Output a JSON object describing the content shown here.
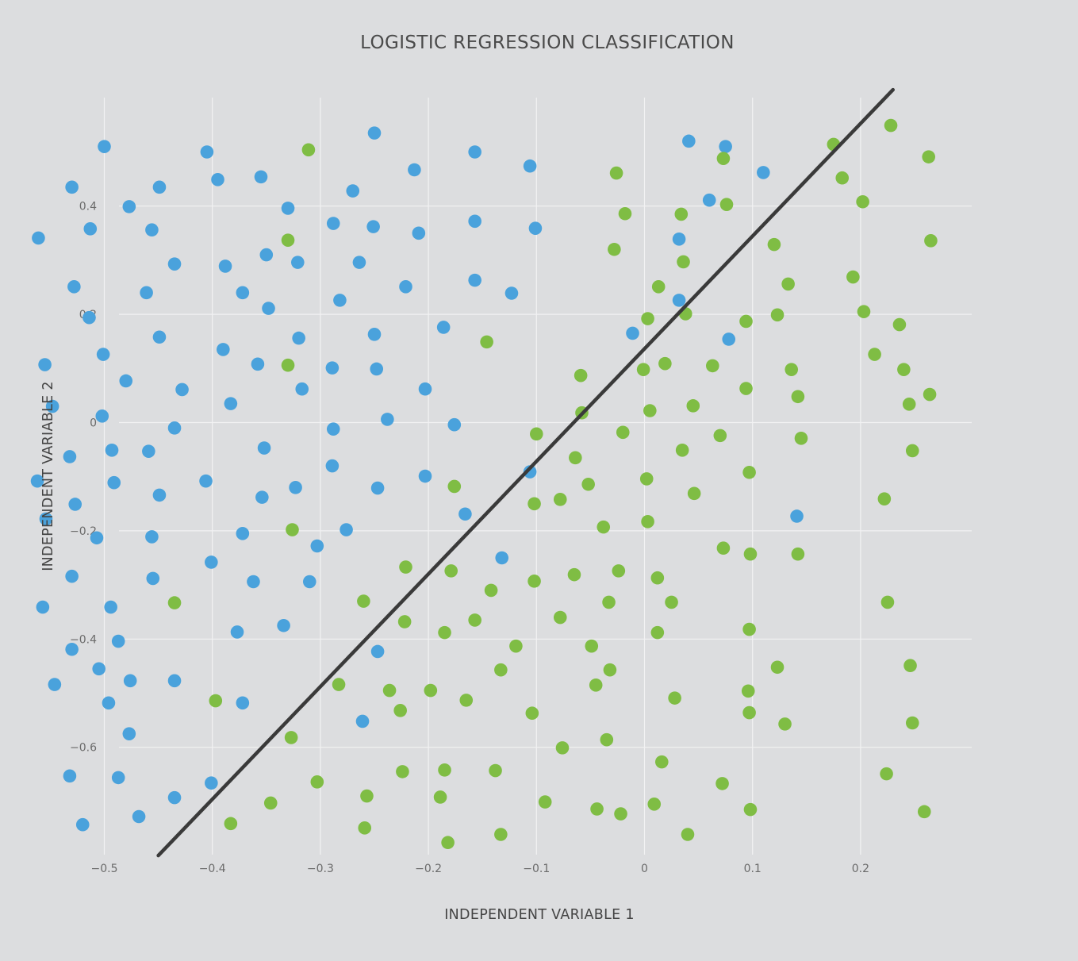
{
  "chart_data": {
    "type": "scatter",
    "title": "LOGISTIC REGRESSION CLASSIFICATION",
    "xlabel": "INDEPENDENT VARIABLE 1",
    "ylabel": "INDEPENDENT VARIABLE 2",
    "xlim": [
      -0.6,
      0.3
    ],
    "ylim": [
      -0.8,
      0.6
    ],
    "x_ticks": [
      -0.5,
      -0.4,
      -0.3,
      -0.2,
      -0.1,
      0,
      0.1,
      0.2
    ],
    "x_tick_labels": [
      "−0.5",
      "−0.4",
      "−0.3",
      "−0.2",
      "−0.1",
      "0",
      "0.1",
      "0.2"
    ],
    "y_ticks": [
      -0.6,
      -0.4,
      -0.2,
      0,
      0.2,
      0.4
    ],
    "y_tick_labels": [
      "−0.6",
      "−0.4",
      "−0.2",
      "0",
      "0.2",
      "0.4"
    ],
    "grid": true,
    "legend": "none",
    "colors": {
      "blue": "#4aa2dc",
      "green": "#7fbd44",
      "line": "#3a3a3a",
      "background": "#dcdddf"
    },
    "decision_boundary": {
      "x": [
        -0.45,
        0.23
      ],
      "y": [
        -0.8,
        0.615
      ]
    },
    "series": [
      {
        "color": "#4aa2dc",
        "points": [
          [
            -0.5,
            0.51
          ],
          [
            -0.53,
            0.435
          ],
          [
            -0.513,
            0.358
          ],
          [
            -0.561,
            0.341
          ],
          [
            -0.528,
            0.251
          ],
          [
            -0.514,
            0.194
          ],
          [
            -0.555,
            0.107
          ],
          [
            -0.501,
            0.126
          ],
          [
            -0.548,
            0.03
          ],
          [
            -0.502,
            0.012
          ],
          [
            -0.532,
            -0.063
          ],
          [
            -0.562,
            -0.108
          ],
          [
            -0.527,
            -0.151
          ],
          [
            -0.554,
            -0.178
          ],
          [
            -0.507,
            -0.213
          ],
          [
            -0.53,
            -0.284
          ],
          [
            -0.557,
            -0.341
          ],
          [
            -0.53,
            -0.419
          ],
          [
            -0.546,
            -0.484
          ],
          [
            -0.532,
            -0.653
          ],
          [
            -0.52,
            -0.743
          ],
          [
            -0.477,
            0.399
          ],
          [
            -0.461,
            0.24
          ],
          [
            -0.48,
            0.077
          ],
          [
            -0.493,
            -0.051
          ],
          [
            -0.491,
            -0.111
          ],
          [
            -0.494,
            -0.341
          ],
          [
            -0.487,
            -0.404
          ],
          [
            -0.505,
            -0.455
          ],
          [
            -0.496,
            -0.518
          ],
          [
            -0.476,
            -0.477
          ],
          [
            -0.477,
            -0.575
          ],
          [
            -0.487,
            -0.656
          ],
          [
            -0.468,
            -0.728
          ],
          [
            -0.449,
            0.435
          ],
          [
            -0.456,
            0.356
          ],
          [
            -0.449,
            0.158
          ],
          [
            -0.459,
            -0.053
          ],
          [
            -0.449,
            -0.134
          ],
          [
            -0.456,
            -0.211
          ],
          [
            -0.455,
            -0.288
          ],
          [
            -0.435,
            0.293
          ],
          [
            -0.428,
            0.061
          ],
          [
            -0.435,
            -0.01
          ],
          [
            -0.435,
            -0.477
          ],
          [
            -0.435,
            -0.693
          ],
          [
            -0.405,
            0.5
          ],
          [
            -0.395,
            0.449
          ],
          [
            -0.388,
            0.289
          ],
          [
            -0.39,
            0.135
          ],
          [
            -0.383,
            0.035
          ],
          [
            -0.406,
            -0.108
          ],
          [
            -0.401,
            -0.258
          ],
          [
            -0.377,
            -0.387
          ],
          [
            -0.372,
            0.24
          ],
          [
            -0.372,
            -0.205
          ],
          [
            -0.372,
            -0.518
          ],
          [
            -0.401,
            -0.666
          ],
          [
            -0.355,
            0.454
          ],
          [
            -0.35,
            0.31
          ],
          [
            -0.348,
            0.211
          ],
          [
            -0.358,
            0.108
          ],
          [
            -0.352,
            -0.047
          ],
          [
            -0.354,
            -0.138
          ],
          [
            -0.362,
            -0.294
          ],
          [
            -0.33,
            0.396
          ],
          [
            -0.321,
            0.296
          ],
          [
            -0.32,
            0.156
          ],
          [
            -0.317,
            0.062
          ],
          [
            -0.323,
            -0.12
          ],
          [
            -0.334,
            -0.375
          ],
          [
            -0.31,
            -0.294
          ],
          [
            -0.303,
            -0.228
          ],
          [
            -0.288,
            0.368
          ],
          [
            -0.282,
            0.226
          ],
          [
            -0.289,
            0.101
          ],
          [
            -0.288,
            -0.012
          ],
          [
            -0.289,
            -0.08
          ],
          [
            -0.27,
            0.428
          ],
          [
            -0.264,
            0.296
          ],
          [
            -0.276,
            -0.198
          ],
          [
            -0.261,
            -0.552
          ],
          [
            -0.25,
            0.535
          ],
          [
            -0.251,
            0.362
          ],
          [
            -0.25,
            0.163
          ],
          [
            -0.248,
            0.099
          ],
          [
            -0.238,
            0.006
          ],
          [
            -0.247,
            -0.121
          ],
          [
            -0.247,
            -0.423
          ],
          [
            -0.213,
            0.467
          ],
          [
            -0.221,
            0.251
          ],
          [
            -0.209,
            0.35
          ],
          [
            -0.203,
            0.062
          ],
          [
            -0.203,
            -0.099
          ],
          [
            -0.186,
            0.176
          ],
          [
            -0.176,
            -0.004
          ],
          [
            -0.166,
            -0.169
          ],
          [
            -0.157,
            0.5
          ],
          [
            -0.157,
            0.372
          ],
          [
            -0.157,
            0.263
          ],
          [
            -0.132,
            -0.25
          ],
          [
            -0.123,
            0.239
          ],
          [
            -0.106,
            0.474
          ],
          [
            -0.101,
            0.359
          ],
          [
            -0.106,
            -0.091
          ],
          [
            -0.011,
            0.165
          ],
          [
            0.032,
            0.339
          ],
          [
            0.032,
            0.226
          ],
          [
            0.041,
            0.52
          ],
          [
            0.06,
            0.411
          ],
          [
            0.075,
            0.51
          ],
          [
            0.078,
            0.154
          ],
          [
            0.11,
            0.462
          ],
          [
            0.141,
            -0.173
          ]
        ]
      },
      {
        "color": "#7fbd44",
        "points": [
          [
            -0.311,
            0.504
          ],
          [
            -0.33,
            0.337
          ],
          [
            -0.33,
            0.106
          ],
          [
            -0.326,
            -0.198
          ],
          [
            -0.435,
            -0.333
          ],
          [
            -0.397,
            -0.514
          ],
          [
            -0.383,
            -0.741
          ],
          [
            -0.327,
            -0.582
          ],
          [
            -0.346,
            -0.703
          ],
          [
            -0.303,
            -0.664
          ],
          [
            -0.283,
            -0.484
          ],
          [
            -0.26,
            -0.33
          ],
          [
            -0.257,
            -0.69
          ],
          [
            -0.259,
            -0.749
          ],
          [
            -0.236,
            -0.495
          ],
          [
            -0.226,
            -0.532
          ],
          [
            -0.221,
            -0.267
          ],
          [
            -0.222,
            -0.368
          ],
          [
            -0.224,
            -0.645
          ],
          [
            -0.198,
            -0.495
          ],
          [
            -0.176,
            -0.118
          ],
          [
            -0.179,
            -0.274
          ],
          [
            -0.185,
            -0.388
          ],
          [
            -0.185,
            -0.642
          ],
          [
            -0.189,
            -0.692
          ],
          [
            -0.182,
            -0.776
          ],
          [
            -0.165,
            -0.513
          ],
          [
            -0.146,
            0.149
          ],
          [
            -0.142,
            -0.31
          ],
          [
            -0.157,
            -0.365
          ],
          [
            -0.138,
            -0.643
          ],
          [
            -0.133,
            -0.457
          ],
          [
            -0.133,
            -0.761
          ],
          [
            -0.119,
            -0.413
          ],
          [
            -0.104,
            -0.537
          ],
          [
            -0.102,
            -0.293
          ],
          [
            -0.102,
            -0.15
          ],
          [
            -0.1,
            -0.021
          ],
          [
            -0.092,
            -0.701
          ],
          [
            -0.076,
            -0.601
          ],
          [
            -0.078,
            -0.142
          ],
          [
            -0.078,
            -0.36
          ],
          [
            -0.065,
            -0.281
          ],
          [
            -0.064,
            -0.065
          ],
          [
            -0.059,
            0.087
          ],
          [
            -0.058,
            0.018
          ],
          [
            -0.052,
            -0.114
          ],
          [
            -0.049,
            -0.413
          ],
          [
            -0.045,
            -0.485
          ],
          [
            -0.044,
            -0.714
          ],
          [
            -0.038,
            -0.193
          ],
          [
            -0.028,
            0.32
          ],
          [
            -0.026,
            0.461
          ],
          [
            -0.018,
            0.386
          ],
          [
            -0.02,
            -0.018
          ],
          [
            -0.024,
            -0.274
          ],
          [
            -0.033,
            -0.332
          ],
          [
            -0.032,
            -0.457
          ],
          [
            -0.035,
            -0.586
          ],
          [
            -0.022,
            -0.723
          ],
          [
            -0.001,
            0.098
          ],
          [
            0.002,
            -0.104
          ],
          [
            0.003,
            0.192
          ],
          [
            0.003,
            -0.183
          ],
          [
            0.005,
            0.022
          ],
          [
            0.013,
            0.251
          ],
          [
            0.012,
            -0.287
          ],
          [
            0.012,
            -0.388
          ],
          [
            0.009,
            -0.705
          ],
          [
            0.019,
            0.109
          ],
          [
            0.016,
            -0.627
          ],
          [
            0.025,
            -0.332
          ],
          [
            0.028,
            -0.509
          ],
          [
            0.034,
            0.385
          ],
          [
            0.036,
            0.297
          ],
          [
            0.038,
            0.201
          ],
          [
            0.035,
            -0.051
          ],
          [
            0.04,
            -0.761
          ],
          [
            0.046,
            -0.131
          ],
          [
            0.045,
            0.031
          ],
          [
            0.063,
            0.105
          ],
          [
            0.076,
            0.403
          ],
          [
            0.07,
            -0.024
          ],
          [
            0.072,
            -0.667
          ],
          [
            0.073,
            -0.232
          ],
          [
            0.073,
            0.488
          ],
          [
            0.094,
            0.187
          ],
          [
            0.094,
            0.063
          ],
          [
            0.097,
            -0.092
          ],
          [
            0.097,
            -0.382
          ],
          [
            0.098,
            -0.243
          ],
          [
            0.096,
            -0.496
          ],
          [
            0.097,
            -0.536
          ],
          [
            0.098,
            -0.715
          ],
          [
            0.12,
            0.329
          ],
          [
            0.123,
            0.199
          ],
          [
            0.123,
            -0.452
          ],
          [
            0.13,
            -0.557
          ],
          [
            0.133,
            0.256
          ],
          [
            0.136,
            0.098
          ],
          [
            0.142,
            0.048
          ],
          [
            0.145,
            -0.029
          ],
          [
            0.142,
            -0.243
          ],
          [
            0.175,
            0.514
          ],
          [
            0.183,
            0.452
          ],
          [
            0.193,
            0.269
          ],
          [
            0.202,
            0.408
          ],
          [
            0.203,
            0.205
          ],
          [
            0.213,
            0.126
          ],
          [
            0.222,
            -0.141
          ],
          [
            0.225,
            -0.332
          ],
          [
            0.224,
            -0.649
          ],
          [
            0.228,
            0.549
          ],
          [
            0.236,
            0.181
          ],
          [
            0.24,
            0.098
          ],
          [
            0.245,
            0.034
          ],
          [
            0.248,
            -0.052
          ],
          [
            0.246,
            -0.449
          ],
          [
            0.248,
            -0.555
          ],
          [
            0.259,
            -0.719
          ],
          [
            0.263,
            0.491
          ],
          [
            0.265,
            0.336
          ],
          [
            0.264,
            0.052
          ]
        ]
      }
    ]
  }
}
